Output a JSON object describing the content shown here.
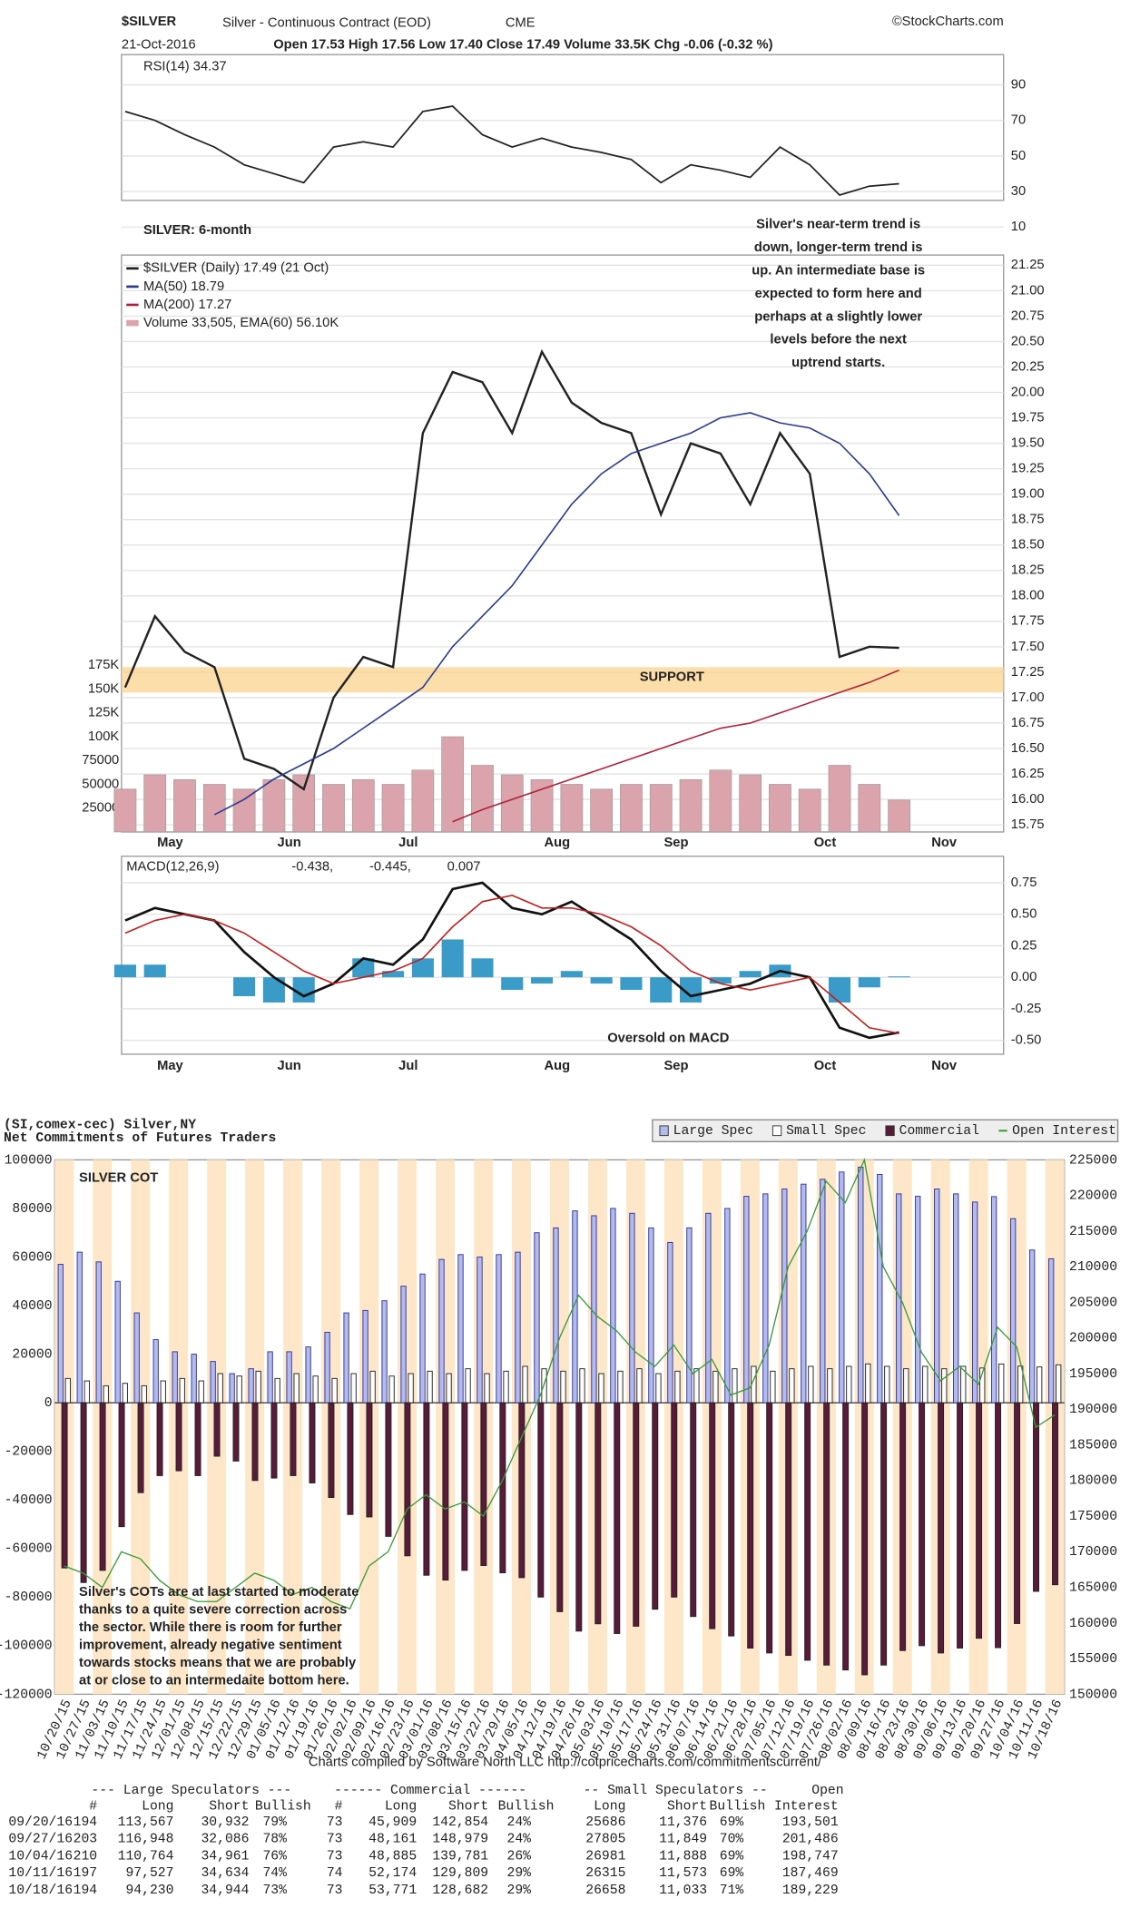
{
  "header": {
    "symbol": "$SILVER",
    "name": "Silver - Continuous Contract (EOD)",
    "exchange": "CME",
    "source": "©StockCharts.com",
    "date": "21-Oct-2016",
    "quote": "Open 17.53  High 17.56  Low 17.40  Close 17.49  Volume 33.5K  Chg -0.06 (-0.32 %)"
  },
  "chart_data": [
    {
      "type": "line",
      "title": "RSI(14) 34.37",
      "color": "#222222",
      "values": [
        75,
        70,
        62,
        55,
        45,
        40,
        35,
        55,
        58,
        55,
        75,
        78,
        62,
        55,
        60,
        55,
        52,
        48,
        35,
        45,
        42,
        38,
        55,
        45,
        28,
        33,
        34.37,
        null,
        null
      ],
      "ylim": [
        25,
        107
      ],
      "yticks": [
        10,
        30,
        50,
        70,
        90
      ],
      "grid": true
    },
    {
      "type": "line",
      "title": "SILVER: 6-month",
      "categories": [
        null,
        null,
        "May",
        null,
        null,
        null,
        "Jun",
        null,
        null,
        null,
        "Jul",
        null,
        null,
        null,
        null,
        "Aug",
        null,
        null,
        null,
        "Sep",
        null,
        null,
        null,
        null,
        "Oct",
        null,
        null,
        null,
        "Nov"
      ],
      "series": [
        {
          "name": "$SILVER (Daily) 17.49 (21 Oct)",
          "color": "#222222",
          "values": [
            17.1,
            17.8,
            17.45,
            17.3,
            16.4,
            16.3,
            16.1,
            17.0,
            17.4,
            17.3,
            19.6,
            20.2,
            20.1,
            19.6,
            20.4,
            19.9,
            19.7,
            19.6,
            18.8,
            19.5,
            19.4,
            18.9,
            19.6,
            19.2,
            17.4,
            17.5,
            17.49,
            null,
            null
          ]
        },
        {
          "name": "MA(50) 18.79",
          "color": "#2b3a8f",
          "values": [
            null,
            null,
            null,
            15.85,
            16.0,
            16.2,
            16.35,
            16.5,
            16.7,
            16.9,
            17.1,
            17.5,
            17.8,
            18.1,
            18.5,
            18.9,
            19.2,
            19.4,
            19.5,
            19.6,
            19.75,
            19.8,
            19.7,
            19.65,
            19.5,
            19.2,
            18.79,
            null,
            null
          ]
        },
        {
          "name": "MA(200) 17.27",
          "color": "#b0203a",
          "values": [
            null,
            null,
            null,
            null,
            null,
            null,
            null,
            null,
            null,
            null,
            null,
            15.78,
            15.9,
            16.0,
            16.1,
            16.2,
            16.3,
            16.4,
            16.5,
            16.6,
            16.7,
            16.75,
            16.85,
            16.95,
            17.05,
            17.15,
            17.27,
            null,
            null
          ]
        },
        {
          "name": "Volume 33,505, EMA(60) 56.10K",
          "color": "#dba3ab",
          "type": "bar",
          "axis": "y2",
          "values": [
            45000,
            60000,
            55000,
            50000,
            45000,
            55000,
            60000,
            50000,
            55000,
            50000,
            65000,
            100000,
            70000,
            60000,
            55000,
            50000,
            45000,
            50000,
            50000,
            55000,
            65000,
            60000,
            50000,
            45000,
            70000,
            50000,
            33505,
            null,
            null
          ]
        }
      ],
      "ylim": [
        15.68,
        21.35
      ],
      "yticks": [
        15.75,
        {
          "value": 16,
          "label": "16.00"
        },
        16.25,
        {
          "value": 16.5,
          "label": "16.50"
        },
        16.75,
        {
          "value": 17,
          "label": "17.00"
        },
        17.25,
        {
          "value": 17.5,
          "label": "17.50"
        },
        17.75,
        {
          "value": 18,
          "label": "18.00"
        },
        18.25,
        {
          "value": 18.5,
          "label": "18.50"
        },
        18.75,
        {
          "value": 19,
          "label": "19.00"
        },
        19.25,
        {
          "value": 19.5,
          "label": "19.50"
        },
        19.75,
        {
          "value": 20,
          "label": "20.00"
        },
        20.25,
        {
          "value": 20.5,
          "label": "20.50"
        },
        20.75,
        {
          "value": 21,
          "label": "21.00"
        },
        21.25
      ],
      "y2lim": [
        0,
        606000
      ],
      "y2ticks": [
        25000,
        50000,
        75000,
        {
          "value": 100000,
          "label": "100K"
        },
        {
          "value": 125000,
          "label": "125K"
        },
        {
          "value": 150000,
          "label": "150K"
        },
        {
          "value": 175000,
          "label": "175K"
        }
      ],
      "grid": true,
      "support": {
        "label": "SUPPORT",
        "range": [
          17.05,
          17.3
        ],
        "color": "#fbd38d"
      },
      "annotation": [
        "Silver's near-term trend is",
        "down, longer-term trend is",
        "up. An intermediate base is",
        "expected to form here and",
        "perhaps at a slightly lower",
        "levels before the next",
        "uptrend starts."
      ]
    },
    {
      "type": "line",
      "title": "MACD(12,26,9)",
      "categories": [
        null,
        null,
        "May",
        null,
        null,
        null,
        "Jun",
        null,
        null,
        null,
        "Jul",
        null,
        null,
        null,
        null,
        "Aug",
        null,
        null,
        null,
        "Sep",
        null,
        null,
        null,
        null,
        "Oct",
        null,
        null,
        null,
        "Nov"
      ],
      "series": [
        {
          "name": "-0.438,",
          "color": "#111111",
          "values": [
            0.45,
            0.55,
            0.5,
            0.45,
            0.2,
            0.0,
            -0.15,
            -0.05,
            0.15,
            0.1,
            0.3,
            0.7,
            0.75,
            0.55,
            0.5,
            0.6,
            0.45,
            0.3,
            0.05,
            -0.15,
            -0.1,
            -0.05,
            0.05,
            0.0,
            -0.4,
            -0.48,
            -0.438,
            null,
            null
          ]
        },
        {
          "name": "-0.445,",
          "color": "#c02020",
          "values": [
            0.35,
            0.45,
            0.5,
            0.45,
            0.35,
            0.2,
            0.05,
            -0.05,
            0.0,
            0.05,
            0.15,
            0.4,
            0.6,
            0.65,
            0.55,
            0.55,
            0.5,
            0.4,
            0.25,
            0.05,
            -0.05,
            -0.1,
            -0.05,
            0.0,
            -0.2,
            -0.4,
            -0.445,
            null,
            null
          ]
        },
        {
          "name": "0.007",
          "color": "#3a9ac8",
          "type": "bar",
          "values": [
            0.1,
            0.1,
            0.0,
            0.0,
            -0.15,
            -0.2,
            -0.2,
            0.0,
            0.15,
            0.05,
            0.15,
            0.3,
            0.15,
            -0.1,
            -0.05,
            0.05,
            -0.05,
            -0.1,
            -0.2,
            -0.2,
            -0.05,
            0.05,
            0.1,
            0.0,
            -0.2,
            -0.08,
            0.007,
            null,
            null
          ]
        }
      ],
      "ylim": [
        -0.61,
        0.96
      ],
      "yticks": [
        {
          "value": -0.5,
          "label": "-0.50"
        },
        -0.25,
        {
          "value": 0,
          "label": "0.00"
        },
        0.25,
        {
          "value": 0.5,
          "label": "0.50"
        },
        0.75
      ],
      "grid": true,
      "annotation": "Oversold on MACD"
    },
    {
      "type": "bar",
      "title": "(SI,comex-cec) Silver,NY",
      "subtitle": "Net Commitments of Futures Traders",
      "label": "SILVER COT",
      "categories": [
        "10/20/15",
        "10/27/15",
        "11/03/15",
        "11/10/15",
        "11/17/15",
        "11/24/15",
        "12/01/15",
        "12/08/15",
        "12/15/15",
        "12/22/15",
        "12/29/15",
        "01/05/16",
        "01/12/16",
        "01/19/16",
        "01/26/16",
        "02/02/16",
        "02/09/16",
        "02/16/16",
        "02/23/16",
        "03/01/16",
        "03/08/16",
        "03/15/16",
        "03/22/16",
        "03/29/16",
        "04/05/16",
        "04/12/16",
        "04/19/16",
        "04/26/16",
        "05/03/16",
        "05/10/16",
        "05/17/16",
        "05/24/16",
        "05/31/16",
        "06/07/16",
        "06/14/16",
        "06/21/16",
        "06/28/16",
        "07/05/16",
        "07/12/16",
        "07/19/16",
        "07/26/16",
        "08/02/16",
        "08/09/16",
        "08/16/16",
        "08/23/16",
        "08/30/16",
        "09/06/16",
        "09/13/16",
        "09/20/16",
        "09/27/16",
        "10/04/16",
        "10/11/16",
        "10/18/16"
      ],
      "series": [
        {
          "name": "Large Spec",
          "color": "#b3bbec",
          "values": [
            57000,
            62000,
            58000,
            50000,
            37000,
            26000,
            21000,
            20000,
            17000,
            12000,
            14000,
            21000,
            21000,
            23000,
            29000,
            37000,
            38000,
            42000,
            48000,
            53000,
            59000,
            61000,
            60000,
            61000,
            62000,
            70000,
            72000,
            79000,
            77000,
            80000,
            78000,
            72000,
            66000,
            72000,
            78000,
            80000,
            85000,
            86000,
            88000,
            90000,
            92000,
            95000,
            97000,
            94000,
            86000,
            85000,
            88000,
            86000,
            82635,
            84862,
            75803,
            62893,
            59286
          ]
        },
        {
          "name": "Small Spec",
          "color": "#ffffff",
          "values": [
            10000,
            9000,
            7000,
            8000,
            7000,
            9000,
            10000,
            9000,
            12000,
            11000,
            13000,
            10000,
            12000,
            11000,
            10000,
            12000,
            13000,
            11000,
            12000,
            13000,
            12000,
            14000,
            12000,
            13000,
            15000,
            14000,
            13000,
            14000,
            12000,
            13000,
            14000,
            12000,
            13000,
            14000,
            13000,
            14000,
            15000,
            13000,
            14000,
            15000,
            14000,
            15000,
            16000,
            15000,
            14000,
            15000,
            14000,
            15000,
            14310,
            15956,
            15093,
            14742,
            15625
          ]
        },
        {
          "name": "Commercial",
          "color": "#5a1a3a",
          "values": [
            -68000,
            -74000,
            -69000,
            -51000,
            -37000,
            -30000,
            -28000,
            -30000,
            -22000,
            -24000,
            -32000,
            -31000,
            -30000,
            -33000,
            -39000,
            -46000,
            -47000,
            -55000,
            -63000,
            -71000,
            -73000,
            -69000,
            -67000,
            -70000,
            -72000,
            -80000,
            -86000,
            -94000,
            -91000,
            -95000,
            -92000,
            -85000,
            -80000,
            -88000,
            -93000,
            -96000,
            -101000,
            -103000,
            -104000,
            -106000,
            -108000,
            -110000,
            -112000,
            -108000,
            -102000,
            -100000,
            -103000,
            -101000,
            -96945,
            -100818,
            -90896,
            -77635,
            -74911
          ]
        },
        {
          "name": "Open Interest",
          "color": "#3a9a3a",
          "type": "line",
          "axis": "y2",
          "values": [
            168000,
            167000,
            165000,
            170000,
            169000,
            166000,
            164000,
            163000,
            163000,
            165000,
            167000,
            166000,
            164000,
            165000,
            163000,
            162000,
            168000,
            170000,
            176000,
            178000,
            176000,
            177000,
            175000,
            180000,
            186000,
            192000,
            200000,
            206000,
            203000,
            201000,
            198000,
            196000,
            199000,
            195000,
            197000,
            192000,
            193000,
            199000,
            210000,
            215000,
            222000,
            219000,
            225000,
            210000,
            205000,
            198000,
            194000,
            196000,
            193501,
            201486,
            198747,
            187469,
            189229
          ]
        }
      ],
      "ylim": [
        -120000,
        100000
      ],
      "yticks": [
        -120000,
        -100000,
        -80000,
        -60000,
        -40000,
        -20000,
        0,
        20000,
        40000,
        60000,
        80000,
        100000
      ],
      "y2lim": [
        150000,
        225000
      ],
      "y2ticks": [
        150000,
        155000,
        160000,
        165000,
        170000,
        175000,
        180000,
        185000,
        190000,
        195000,
        200000,
        205000,
        210000,
        215000,
        220000,
        225000
      ],
      "annotation": [
        "Silver's COTs are at last started to moderate",
        "thanks to a quite severe correction across",
        "the sector. While there is room for further",
        "improvement, already negative sentiment",
        "towards stocks means that we are probably",
        "at or close to an intermedaite bottom here."
      ],
      "footer": "Charts compiled by Software North LLC  http://cotpricecharts.com/commitmentscurrent/"
    }
  ],
  "cot_table": {
    "group_headers": [
      "--- Large Speculators ---",
      "------ Commercial ------",
      "-- Small Speculators --",
      "Open"
    ],
    "columns": [
      "#",
      "Long",
      "Short",
      "Bullish",
      "#",
      "Long",
      "Short",
      "Bullish",
      "Long",
      "Short",
      "Bullish",
      "Interest"
    ],
    "rows": [
      [
        "09/20/16",
        "194",
        "113,567",
        "30,932",
        "79%",
        "73",
        "45,909",
        "142,854",
        "24%",
        "25686",
        "11,376",
        "69%",
        "193,501"
      ],
      [
        "09/27/16",
        "203",
        "116,948",
        "32,086",
        "78%",
        "73",
        "48,161",
        "148,979",
        "24%",
        "27805",
        "11,849",
        "70%",
        "201,486"
      ],
      [
        "10/04/16",
        "210",
        "110,764",
        "34,961",
        "76%",
        "73",
        "48,885",
        "139,781",
        "26%",
        "26981",
        "11,888",
        "69%",
        "198,747"
      ],
      [
        "10/11/16",
        "197",
        "97,527",
        "34,634",
        "74%",
        "74",
        "52,174",
        "129,809",
        "29%",
        "26315",
        "11,573",
        "69%",
        "187,469"
      ],
      [
        "10/18/16",
        "194",
        "94,230",
        "34,944",
        "73%",
        "73",
        "53,771",
        "128,682",
        "29%",
        "26658",
        "11,033",
        "71%",
        "189,229"
      ]
    ]
  }
}
